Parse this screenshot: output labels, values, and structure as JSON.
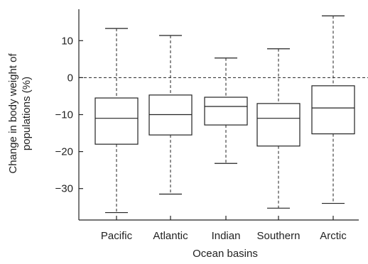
{
  "chart_data": {
    "type": "boxplot",
    "title": "",
    "xlabel": "Ocean basins",
    "ylabel_lines": [
      "Change in body weight of",
      "populations (%)"
    ],
    "categories": [
      "Pacific",
      "Atlantic",
      "Indian",
      "Southern",
      "Arctic"
    ],
    "boxes": [
      {
        "whisker_low": -36.5,
        "q1": -18.0,
        "median": -11.0,
        "q3": -5.5,
        "whisker_high": 13.3
      },
      {
        "whisker_low": -31.5,
        "q1": -15.5,
        "median": -10.0,
        "q3": -4.7,
        "whisker_high": 11.4
      },
      {
        "whisker_low": -23.2,
        "q1": -12.8,
        "median": -7.8,
        "q3": -5.3,
        "whisker_high": 5.3
      },
      {
        "whisker_low": -35.3,
        "q1": -18.5,
        "median": -11.0,
        "q3": -7.0,
        "whisker_high": 7.8
      },
      {
        "whisker_low": -34.0,
        "q1": -15.2,
        "median": -8.2,
        "q3": -2.2,
        "whisker_high": 16.7
      }
    ],
    "yticks": [
      10,
      0,
      -10,
      -20,
      -30
    ],
    "ytick_labels": [
      "10",
      "0",
      "−10",
      "−20",
      "−30"
    ],
    "ylim": [
      -38.5,
      18.5
    ],
    "reference_line": 0,
    "grid": false,
    "colors": {
      "stroke": "#222222",
      "box_fill": "#ffffff"
    }
  }
}
